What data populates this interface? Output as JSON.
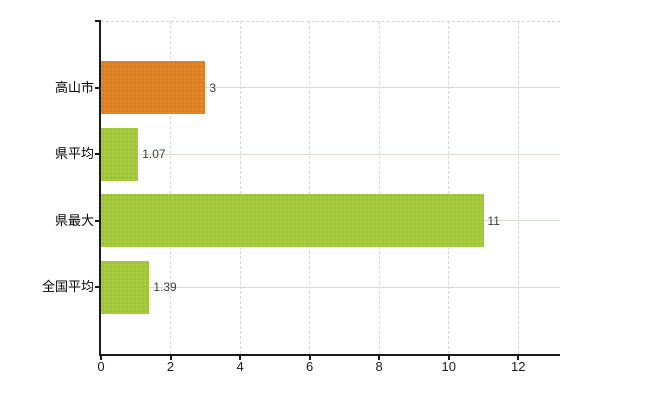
{
  "chart_data": {
    "type": "bar",
    "orientation": "horizontal",
    "title": "",
    "xlabel": "",
    "ylabel": "",
    "categories": [
      "高山市",
      "県平均",
      "県最大",
      "全国平均"
    ],
    "values": [
      3,
      1.07,
      11,
      1.39
    ],
    "value_labels": [
      "3",
      "1.07",
      "11",
      "1.39"
    ],
    "bar_colors": [
      "#e0801f",
      "#a2c935",
      "#a2c935",
      "#a2c935"
    ],
    "xlim": [
      0,
      13.2
    ],
    "xticks": [
      0,
      2,
      4,
      6,
      8,
      10,
      12
    ],
    "grid": {
      "vertical": "dashed",
      "horizontal": "solid",
      "top_border": "dashed"
    },
    "legend": null
  },
  "colors": {
    "bar_highlight": "#e0801f",
    "bar_normal": "#a2c935",
    "axis": "#1b1b1b",
    "grid_vertical": "#d8d8d8",
    "grid_horizontal": "#d5dcd2",
    "category_text": "#000000",
    "value_text": "#3c3c3c",
    "background": "#ffffff"
  }
}
